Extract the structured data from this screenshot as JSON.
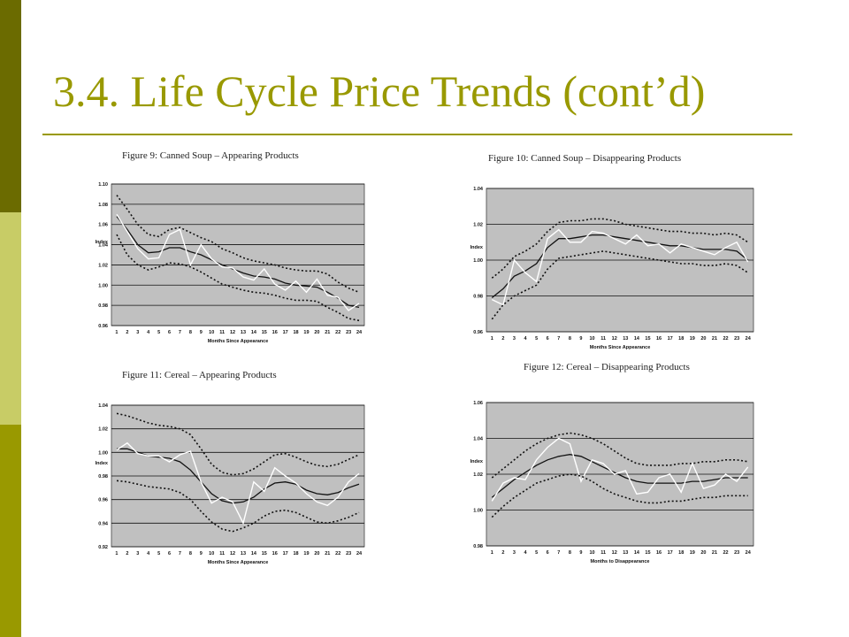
{
  "slide": {
    "title": "3.4. Life Cycle Price Trends (cont’d)"
  },
  "colors": {
    "accent": "#999900",
    "strip_dark": "#6b6b00",
    "strip_light": "#c8cc66",
    "plot_bg": "#c0c0c0"
  },
  "chart_data": [
    {
      "type": "line",
      "title": "Figure 9: Canned Soup – Appearing Products",
      "xlabel": "Months Since Appearance",
      "ylabel": "Index",
      "x": [
        1,
        2,
        3,
        4,
        5,
        6,
        7,
        8,
        9,
        10,
        11,
        12,
        13,
        14,
        15,
        16,
        17,
        18,
        19,
        20,
        21,
        22,
        23,
        24
      ],
      "ylim": [
        0.96,
        1.1
      ],
      "yticks": [
        "0.96",
        "0.98",
        "1.00",
        "1.02",
        "1.04",
        "1.06",
        "1.08",
        "1.10"
      ],
      "ytick_values": [
        0.96,
        0.98,
        1.0,
        1.02,
        1.04,
        1.06,
        1.08,
        1.1
      ],
      "grid": true,
      "series": [
        {
          "style": "upper",
          "values": [
            1.089,
            1.075,
            1.06,
            1.05,
            1.048,
            1.055,
            1.057,
            1.052,
            1.047,
            1.043,
            1.036,
            1.032,
            1.027,
            1.024,
            1.022,
            1.02,
            1.017,
            1.015,
            1.014,
            1.014,
            1.011,
            1.003,
            0.997,
            0.993
          ]
        },
        {
          "style": "mean",
          "values": [
            1.068,
            1.055,
            1.04,
            1.032,
            1.033,
            1.037,
            1.037,
            1.033,
            1.03,
            1.025,
            1.02,
            1.016,
            1.012,
            1.009,
            1.008,
            1.006,
            1.002,
            1.0,
            0.999,
            0.998,
            0.993,
            0.987,
            0.98,
            0.978
          ]
        },
        {
          "style": "actual",
          "values": [
            1.07,
            1.053,
            1.036,
            1.026,
            1.027,
            1.05,
            1.055,
            1.02,
            1.04,
            1.026,
            1.018,
            1.017,
            1.008,
            1.005,
            1.016,
            1.001,
            0.995,
            1.004,
            0.993,
            1.006,
            0.99,
            0.988,
            0.975,
            0.982
          ]
        },
        {
          "style": "lower",
          "values": [
            1.05,
            1.03,
            1.02,
            1.015,
            1.018,
            1.022,
            1.021,
            1.018,
            1.013,
            1.007,
            1.001,
            0.998,
            0.995,
            0.993,
            0.992,
            0.99,
            0.987,
            0.985,
            0.985,
            0.984,
            0.978,
            0.973,
            0.967,
            0.965
          ]
        }
      ]
    },
    {
      "type": "line",
      "title": "Figure 10: Canned Soup – Disappearing Products",
      "xlabel": "Months Since Appearance",
      "ylabel": "Index",
      "x": [
        1,
        2,
        3,
        4,
        5,
        6,
        7,
        8,
        9,
        10,
        11,
        12,
        13,
        14,
        15,
        16,
        17,
        18,
        19,
        20,
        21,
        22,
        23,
        24
      ],
      "ylim": [
        0.96,
        1.04
      ],
      "yticks": [
        "0.96",
        "0.98",
        "1.00",
        "1.02",
        "1.04"
      ],
      "ytick_values": [
        0.96,
        0.98,
        1.0,
        1.02,
        1.04
      ],
      "grid": true,
      "series": [
        {
          "style": "upper",
          "values": [
            0.99,
            0.995,
            1.002,
            1.005,
            1.009,
            1.016,
            1.021,
            1.022,
            1.022,
            1.023,
            1.023,
            1.022,
            1.02,
            1.019,
            1.018,
            1.017,
            1.016,
            1.016,
            1.015,
            1.015,
            1.014,
            1.015,
            1.014,
            1.01
          ]
        },
        {
          "style": "mean",
          "values": [
            0.979,
            0.984,
            0.991,
            0.994,
            0.998,
            1.007,
            1.012,
            1.012,
            1.013,
            1.014,
            1.014,
            1.013,
            1.012,
            1.011,
            1.01,
            1.009,
            1.008,
            1.008,
            1.007,
            1.006,
            1.006,
            1.006,
            1.005,
            1.0
          ]
        },
        {
          "style": "actual",
          "values": [
            0.978,
            0.975,
            1.0,
            0.993,
            0.988,
            1.012,
            1.017,
            1.01,
            1.01,
            1.016,
            1.015,
            1.012,
            1.009,
            1.014,
            1.008,
            1.009,
            1.004,
            1.009,
            1.007,
            1.005,
            1.003,
            1.007,
            1.01,
            0.999
          ]
        },
        {
          "style": "lower",
          "values": [
            0.967,
            0.975,
            0.98,
            0.983,
            0.986,
            0.995,
            1.001,
            1.002,
            1.003,
            1.004,
            1.005,
            1.004,
            1.003,
            1.002,
            1.001,
            1.0,
            0.999,
            0.998,
            0.998,
            0.997,
            0.997,
            0.998,
            0.997,
            0.993
          ]
        }
      ]
    },
    {
      "type": "line",
      "title": "Figure 11: Cereal – Appearing Products",
      "xlabel": "Months Since Appearance",
      "ylabel": "Index",
      "x": [
        1,
        2,
        3,
        4,
        5,
        6,
        7,
        8,
        9,
        10,
        11,
        12,
        13,
        14,
        15,
        16,
        17,
        18,
        19,
        20,
        21,
        22,
        23,
        24
      ],
      "ylim": [
        0.92,
        1.04
      ],
      "yticks": [
        "0.92",
        "0.94",
        "0.96",
        "0.98",
        "1.00",
        "1.02",
        "1.04"
      ],
      "ytick_values": [
        0.92,
        0.94,
        0.96,
        0.98,
        1.0,
        1.02,
        1.04
      ],
      "grid": true,
      "series": [
        {
          "style": "upper",
          "values": [
            1.033,
            1.031,
            1.028,
            1.025,
            1.023,
            1.022,
            1.02,
            1.015,
            1.003,
            0.99,
            0.983,
            0.981,
            0.982,
            0.986,
            0.992,
            0.998,
            0.999,
            0.996,
            0.992,
            0.989,
            0.988,
            0.99,
            0.994,
            0.998
          ]
        },
        {
          "style": "mean",
          "values": [
            1.003,
            1.003,
            1.0,
            0.997,
            0.996,
            0.995,
            0.992,
            0.985,
            0.975,
            0.965,
            0.959,
            0.957,
            0.958,
            0.962,
            0.969,
            0.974,
            0.975,
            0.973,
            0.968,
            0.965,
            0.964,
            0.966,
            0.97,
            0.973
          ]
        },
        {
          "style": "actual",
          "values": [
            1.002,
            1.008,
            0.999,
            0.997,
            0.997,
            0.992,
            0.998,
            1.001,
            0.975,
            0.957,
            0.962,
            0.958,
            0.94,
            0.975,
            0.967,
            0.987,
            0.98,
            0.974,
            0.965,
            0.958,
            0.955,
            0.962,
            0.975,
            0.982
          ]
        },
        {
          "style": "lower",
          "values": [
            0.976,
            0.975,
            0.973,
            0.971,
            0.97,
            0.969,
            0.966,
            0.96,
            0.95,
            0.941,
            0.935,
            0.933,
            0.936,
            0.94,
            0.946,
            0.95,
            0.951,
            0.949,
            0.945,
            0.941,
            0.94,
            0.942,
            0.945,
            0.949
          ]
        }
      ]
    },
    {
      "type": "line",
      "title": "Figure 12: Cereal – Disappearing Products",
      "xlabel": "Months to Disappearance",
      "ylabel": "Index",
      "x": [
        1,
        2,
        3,
        4,
        5,
        6,
        7,
        8,
        9,
        10,
        11,
        12,
        13,
        14,
        15,
        16,
        17,
        18,
        19,
        20,
        21,
        22,
        23,
        24
      ],
      "ylim": [
        0.98,
        1.06
      ],
      "yticks": [
        "0.98",
        "1.00",
        "1.02",
        "1.04",
        "1.06"
      ],
      "ytick_values": [
        0.98,
        1.0,
        1.02,
        1.04,
        1.06
      ],
      "grid": true,
      "series": [
        {
          "style": "upper",
          "values": [
            1.018,
            1.023,
            1.028,
            1.033,
            1.037,
            1.04,
            1.042,
            1.043,
            1.042,
            1.04,
            1.037,
            1.033,
            1.029,
            1.026,
            1.025,
            1.025,
            1.025,
            1.026,
            1.026,
            1.027,
            1.027,
            1.028,
            1.028,
            1.027
          ]
        },
        {
          "style": "mean",
          "values": [
            1.007,
            1.012,
            1.017,
            1.021,
            1.025,
            1.028,
            1.03,
            1.031,
            1.03,
            1.027,
            1.024,
            1.021,
            1.018,
            1.016,
            1.015,
            1.015,
            1.015,
            1.015,
            1.016,
            1.016,
            1.017,
            1.018,
            1.018,
            1.018
          ]
        },
        {
          "style": "actual",
          "values": [
            1.005,
            1.015,
            1.018,
            1.017,
            1.028,
            1.035,
            1.04,
            1.037,
            1.016,
            1.028,
            1.026,
            1.02,
            1.022,
            1.009,
            1.01,
            1.018,
            1.02,
            1.01,
            1.026,
            1.012,
            1.014,
            1.02,
            1.016,
            1.024
          ]
        },
        {
          "style": "lower",
          "values": [
            0.996,
            1.002,
            1.007,
            1.011,
            1.015,
            1.017,
            1.019,
            1.02,
            1.019,
            1.016,
            1.012,
            1.009,
            1.007,
            1.005,
            1.004,
            1.004,
            1.005,
            1.005,
            1.006,
            1.007,
            1.007,
            1.008,
            1.008,
            1.008
          ]
        }
      ]
    }
  ]
}
